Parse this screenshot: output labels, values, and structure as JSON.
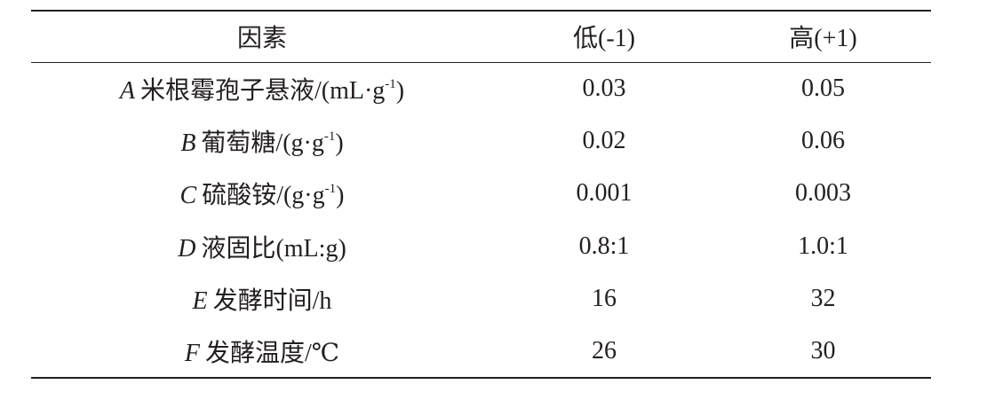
{
  "table": {
    "header": [
      "因素",
      "低(-1)",
      "高(+1)"
    ],
    "rows": [
      {
        "factor": {
          "letter": "A",
          "name": "米根霉孢子悬液/(mL·g",
          "sup": "-1",
          "tail": ")"
        },
        "low": "0.03",
        "high": "0.05"
      },
      {
        "factor": {
          "letter": "B",
          "name": "葡萄糖/(g·g",
          "sup": "-1",
          "tail": ")"
        },
        "low": "0.02",
        "high": "0.06"
      },
      {
        "factor": {
          "letter": "C",
          "name": "硫酸铵/(g·g",
          "sup": "-1",
          "tail": ")"
        },
        "low": "0.001",
        "high": "0.003"
      },
      {
        "factor": {
          "letter": "D",
          "name": "液固比(mL:g)"
        },
        "low": "0.8:1",
        "high": "1.0:1"
      },
      {
        "factor": {
          "letter": "E",
          "name": "发酵时间/h"
        },
        "low": "16",
        "high": "32"
      },
      {
        "factor": {
          "letter": "F",
          "name": "发酵温度/℃"
        },
        "low": "26",
        "high": "30"
      }
    ]
  }
}
